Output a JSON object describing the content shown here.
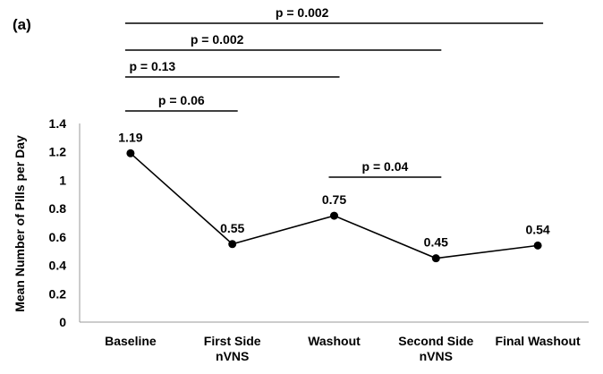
{
  "chart_data": {
    "type": "line",
    "panel_label": "(a)",
    "title": "",
    "xlabel": "",
    "ylabel": "Mean Number of Pills per Day",
    "ylim": [
      0,
      1.4
    ],
    "yticks": [
      "0",
      "0.2",
      "0.4",
      "0.6",
      "0.8",
      "1",
      "1.2",
      "1.4"
    ],
    "ytick_values": [
      0,
      0.2,
      0.4,
      0.6,
      0.8,
      1,
      1.2,
      1.4
    ],
    "categories": [
      [
        "Baseline"
      ],
      [
        "First Side",
        "nVNS"
      ],
      [
        "Washout"
      ],
      [
        "Second Side",
        "nVNS"
      ],
      [
        "Final Washout"
      ]
    ],
    "values": [
      1.19,
      0.55,
      0.75,
      0.45,
      0.54
    ],
    "value_labels": [
      "1.19",
      "0.55",
      "0.75",
      "0.45",
      "0.54"
    ],
    "grid": false,
    "line_color": "#000000",
    "significance": [
      {
        "from": 0,
        "to": 4,
        "label": "p = 0.002"
      },
      {
        "from": 0,
        "to": 3,
        "label": "p = 0.002"
      },
      {
        "from": 0,
        "to": 2,
        "label": "p = 0.13"
      },
      {
        "from": 0,
        "to": 1,
        "label": "p = 0.06"
      },
      {
        "from": 2,
        "to": 3,
        "label": "p = 0.04"
      }
    ]
  }
}
